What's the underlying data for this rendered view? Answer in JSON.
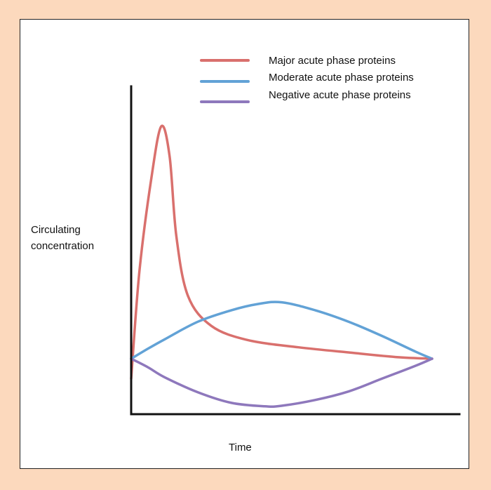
{
  "chart_data": {
    "type": "line",
    "title": "",
    "xlabel": "Time",
    "ylabel_lines": [
      "Circulating",
      "concentration"
    ],
    "xlim": [
      0,
      10
    ],
    "ylim": [
      0,
      10
    ],
    "grid": false,
    "legend_position": "top-right",
    "series": [
      {
        "name": "Major acute phase proteins",
        "color": "#d9706d",
        "points": [
          [
            0,
            1.0
          ],
          [
            0.25,
            4.8
          ],
          [
            0.6,
            8.0
          ],
          [
            0.9,
            9.85
          ],
          [
            1.15,
            8.8
          ],
          [
            1.35,
            6.0
          ],
          [
            1.7,
            3.9
          ],
          [
            2.4,
            2.85
          ],
          [
            3.5,
            2.35
          ],
          [
            5.0,
            2.1
          ],
          [
            6.5,
            1.92
          ],
          [
            8.0,
            1.75
          ],
          [
            9.0,
            1.7
          ]
        ]
      },
      {
        "name": "Moderate acute phase proteins",
        "color": "#62a2d6",
        "points": [
          [
            0,
            1.7
          ],
          [
            0.5,
            2.05
          ],
          [
            1.0,
            2.38
          ],
          [
            2.0,
            3.0
          ],
          [
            3.0,
            3.4
          ],
          [
            3.8,
            3.62
          ],
          [
            4.5,
            3.68
          ],
          [
            5.5,
            3.4
          ],
          [
            6.5,
            3.0
          ],
          [
            7.5,
            2.5
          ],
          [
            8.5,
            1.95
          ],
          [
            9.0,
            1.7
          ]
        ]
      },
      {
        "name": "Negative acute phase proteins",
        "color": "#8e78bc",
        "points": [
          [
            0,
            1.7
          ],
          [
            0.5,
            1.4
          ],
          [
            1.0,
            1.05
          ],
          [
            2.0,
            0.52
          ],
          [
            3.0,
            0.15
          ],
          [
            4.0,
            0.03
          ],
          [
            4.5,
            0.05
          ],
          [
            5.5,
            0.25
          ],
          [
            6.5,
            0.55
          ],
          [
            7.5,
            1.0
          ],
          [
            8.5,
            1.45
          ],
          [
            9.0,
            1.7
          ]
        ]
      }
    ]
  }
}
